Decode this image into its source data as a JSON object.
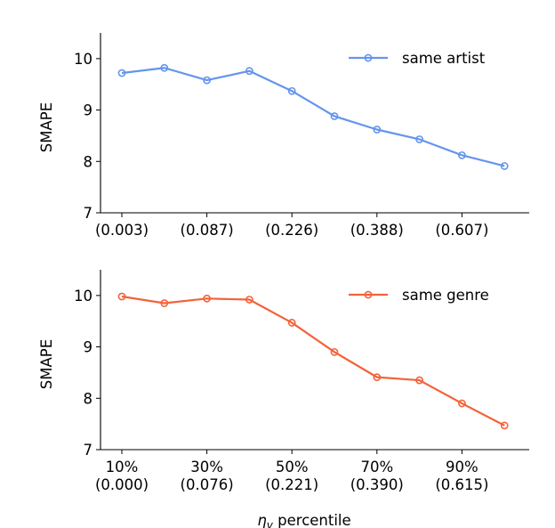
{
  "chart_data": [
    {
      "type": "line",
      "x": [
        10,
        20,
        30,
        40,
        50,
        60,
        70,
        80,
        90,
        100
      ],
      "xtick_positions": [
        10,
        30,
        50,
        70,
        90
      ],
      "xtick_labels": [
        "(0.003)",
        "(0.087)",
        "(0.226)",
        "(0.388)",
        "(0.607)"
      ],
      "xlabel": "",
      "ylabel": "SMAPE",
      "ylim": [
        7,
        10.5
      ],
      "yticks": [
        7,
        8,
        9,
        10
      ],
      "ytick_labels": [
        "7",
        "8",
        "9",
        "10"
      ],
      "grid": false,
      "legend_position": "top-right",
      "series": [
        {
          "name": "same artist",
          "color": "#6495ed",
          "values": [
            9.72,
            9.82,
            9.58,
            9.76,
            9.37,
            8.88,
            8.62,
            8.43,
            8.12,
            7.91
          ]
        }
      ]
    },
    {
      "type": "line",
      "x": [
        10,
        20,
        30,
        40,
        50,
        60,
        70,
        80,
        90,
        100
      ],
      "xtick_positions": [
        10,
        30,
        50,
        70,
        90
      ],
      "xtick_labels": [
        "10%\n(0.000)",
        "30%\n(0.076)",
        "50%\n(0.221)",
        "70%\n(0.390)",
        "90%\n(0.615)"
      ],
      "xlabel": "η_v percentile",
      "ylabel": "SMAPE",
      "ylim": [
        7,
        10.5
      ],
      "yticks": [
        7,
        8,
        9,
        10
      ],
      "ytick_labels": [
        "7",
        "8",
        "9",
        "10"
      ],
      "grid": false,
      "legend_position": "top-right",
      "series": [
        {
          "name": "same genre",
          "color": "#f4623a",
          "values": [
            9.98,
            9.85,
            9.94,
            9.92,
            9.47,
            8.9,
            8.41,
            8.35,
            7.9,
            7.47
          ]
        }
      ]
    }
  ]
}
